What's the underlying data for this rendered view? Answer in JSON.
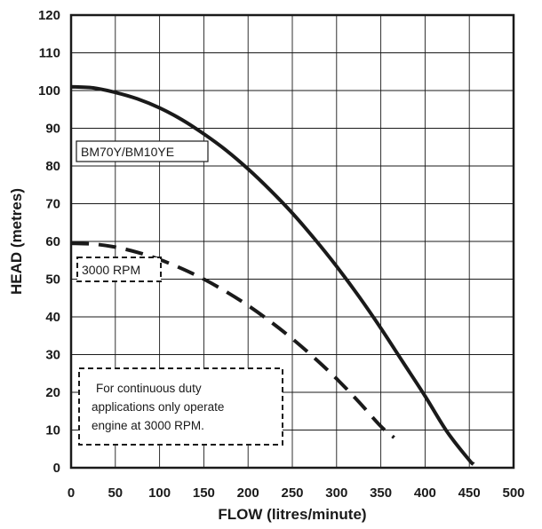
{
  "chart_data": {
    "type": "line",
    "xlabel": "FLOW (litres/minute)",
    "ylabel": "HEAD (metres)",
    "xlim": [
      0,
      500
    ],
    "ylim": [
      0,
      120
    ],
    "x_ticks": [
      "0",
      "50",
      "100",
      "150",
      "200",
      "250",
      "300",
      "350",
      "400",
      "450",
      "500"
    ],
    "y_ticks": [
      "0",
      "10",
      "20",
      "30",
      "40",
      "50",
      "60",
      "70",
      "80",
      "90",
      "100",
      "110",
      "120"
    ],
    "grid": true,
    "series": [
      {
        "name": "BM70Y/BM10YE",
        "style": "solid",
        "color": "#1a1a1a",
        "x": [
          0,
          25,
          50,
          75,
          100,
          125,
          150,
          175,
          200,
          225,
          250,
          275,
          300,
          325,
          350,
          375,
          400,
          425,
          450,
          455
        ],
        "y": [
          101,
          100.7,
          99.5,
          97.8,
          95.4,
          92.3,
          88.5,
          84.2,
          79.2,
          73.6,
          67.5,
          60.7,
          53.4,
          45.5,
          37.0,
          28.0,
          19.0,
          9.5,
          2.0,
          1.0
        ]
      },
      {
        "name": "3000 RPM",
        "style": "dashed",
        "color": "#1a1a1a",
        "x": [
          0,
          25,
          50,
          75,
          100,
          125,
          150,
          175,
          200,
          225,
          250,
          275,
          300,
          325,
          350,
          365
        ],
        "y": [
          59.5,
          59.3,
          58.5,
          57.1,
          55.2,
          52.8,
          50.0,
          46.7,
          43.0,
          38.8,
          34.2,
          29.1,
          23.6,
          17.5,
          11.0,
          8.0
        ]
      }
    ],
    "annotations": {
      "series1_label": "BM70Y/BM10YE",
      "series2_label": "3000 RPM",
      "note_lines": [
        "For continuous duty",
        "applications only operate",
        "engine at 3000 RPM."
      ]
    }
  }
}
